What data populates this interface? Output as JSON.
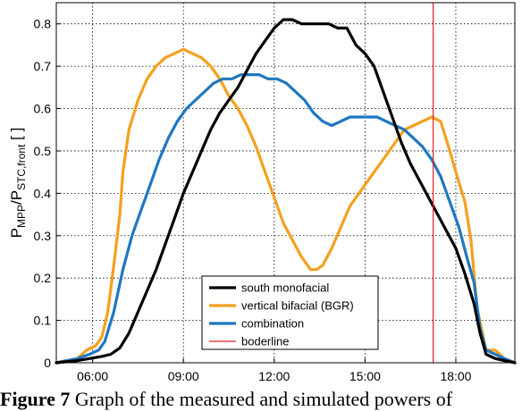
{
  "caption": {
    "label": "Figure 7",
    "text": " Graph of the measured and simulated powers of"
  },
  "chart_data": {
    "type": "line",
    "ylabel": {
      "main": "P",
      "sub1": "MPP",
      "mid": "/P",
      "sub2": "STC,front",
      "unit": " [ ]"
    },
    "x_unit": "hour of day",
    "xlim": [
      4.8,
      19.95
    ],
    "ylim": [
      0,
      0.85
    ],
    "x_ticks": [
      {
        "value": 6,
        "label": "06:00"
      },
      {
        "value": 9,
        "label": "09:00"
      },
      {
        "value": 12,
        "label": "12:00"
      },
      {
        "value": 15,
        "label": "15:00"
      },
      {
        "value": 18,
        "label": "18:00"
      }
    ],
    "y_ticks": [
      {
        "value": 0,
        "label": "0"
      },
      {
        "value": 0.1,
        "label": "0.1"
      },
      {
        "value": 0.2,
        "label": "0.2"
      },
      {
        "value": 0.3,
        "label": "0.3"
      },
      {
        "value": 0.4,
        "label": "0.4"
      },
      {
        "value": 0.5,
        "label": "0.5"
      },
      {
        "value": 0.6,
        "label": "0.6"
      },
      {
        "value": 0.7,
        "label": "0.7"
      },
      {
        "value": 0.8,
        "label": "0.8"
      }
    ],
    "grid": "dotted",
    "legend_position": "bottom-center",
    "series": [
      {
        "name": "south monofacial",
        "color": "#000000",
        "x": [
          4.8,
          5.5,
          5.9,
          6.3,
          6.6,
          6.9,
          7.2,
          7.5,
          7.8,
          8.1,
          8.4,
          8.7,
          9.0,
          9.3,
          9.6,
          9.9,
          10.2,
          10.5,
          10.8,
          11.1,
          11.4,
          11.7,
          12.0,
          12.3,
          12.6,
          12.9,
          13.2,
          13.5,
          13.8,
          14.1,
          14.4,
          14.7,
          15.0,
          15.3,
          15.6,
          15.9,
          16.2,
          16.5,
          16.8,
          17.1,
          17.4,
          17.7,
          18.0,
          18.3,
          18.6,
          18.8,
          19.0,
          19.3,
          19.6,
          19.95
        ],
        "y": [
          0.0,
          0.005,
          0.01,
          0.015,
          0.02,
          0.035,
          0.07,
          0.12,
          0.17,
          0.22,
          0.28,
          0.34,
          0.4,
          0.45,
          0.5,
          0.55,
          0.59,
          0.62,
          0.65,
          0.69,
          0.73,
          0.76,
          0.79,
          0.81,
          0.81,
          0.8,
          0.8,
          0.8,
          0.8,
          0.79,
          0.79,
          0.75,
          0.73,
          0.7,
          0.64,
          0.58,
          0.52,
          0.47,
          0.43,
          0.39,
          0.35,
          0.31,
          0.27,
          0.21,
          0.14,
          0.07,
          0.02,
          0.01,
          0.005,
          0.0
        ]
      },
      {
        "name": "vertical bifacial (BGR)",
        "color": "#f5a01e",
        "x": [
          4.8,
          5.5,
          5.8,
          6.1,
          6.3,
          6.5,
          6.7,
          6.9,
          7.0,
          7.2,
          7.5,
          7.8,
          8.1,
          8.4,
          8.7,
          9.0,
          9.3,
          9.6,
          9.9,
          10.2,
          10.5,
          10.8,
          11.1,
          11.4,
          11.7,
          12.0,
          12.3,
          12.6,
          12.9,
          13.2,
          13.4,
          13.6,
          13.9,
          14.2,
          14.5,
          14.8,
          15.1,
          15.4,
          15.7,
          16.0,
          16.3,
          16.6,
          16.9,
          17.2,
          17.5,
          17.8,
          18.0,
          18.3,
          18.5,
          18.7,
          19.0,
          19.3,
          19.6,
          19.95
        ],
        "y": [
          0.0,
          0.01,
          0.03,
          0.04,
          0.06,
          0.12,
          0.23,
          0.35,
          0.45,
          0.55,
          0.62,
          0.67,
          0.7,
          0.72,
          0.73,
          0.74,
          0.73,
          0.72,
          0.7,
          0.67,
          0.63,
          0.6,
          0.56,
          0.51,
          0.45,
          0.39,
          0.33,
          0.29,
          0.25,
          0.22,
          0.22,
          0.23,
          0.27,
          0.32,
          0.37,
          0.4,
          0.43,
          0.46,
          0.49,
          0.52,
          0.55,
          0.56,
          0.57,
          0.58,
          0.57,
          0.5,
          0.45,
          0.38,
          0.29,
          0.13,
          0.03,
          0.03,
          0.01,
          0.0
        ]
      },
      {
        "name": "combination",
        "color": "#1f77c0",
        "x": [
          4.8,
          5.5,
          5.9,
          6.2,
          6.4,
          6.7,
          7.0,
          7.3,
          7.6,
          7.9,
          8.2,
          8.5,
          8.8,
          9.1,
          9.4,
          9.7,
          10.0,
          10.3,
          10.6,
          10.9,
          11.2,
          11.5,
          11.8,
          12.1,
          12.4,
          12.7,
          13.0,
          13.3,
          13.6,
          13.9,
          14.2,
          14.5,
          14.8,
          15.1,
          15.4,
          15.7,
          16.0,
          16.3,
          16.6,
          16.9,
          17.2,
          17.5,
          17.8,
          18.1,
          18.4,
          18.6,
          18.8,
          19.0,
          19.3,
          19.6,
          19.95
        ],
        "y": [
          0.0,
          0.01,
          0.02,
          0.03,
          0.05,
          0.12,
          0.22,
          0.3,
          0.36,
          0.42,
          0.48,
          0.53,
          0.57,
          0.6,
          0.62,
          0.64,
          0.66,
          0.67,
          0.67,
          0.68,
          0.68,
          0.68,
          0.67,
          0.67,
          0.66,
          0.64,
          0.62,
          0.59,
          0.57,
          0.56,
          0.57,
          0.58,
          0.58,
          0.58,
          0.58,
          0.57,
          0.56,
          0.55,
          0.53,
          0.51,
          0.48,
          0.44,
          0.38,
          0.32,
          0.24,
          0.19,
          0.08,
          0.03,
          0.02,
          0.01,
          0.0
        ]
      },
      {
        "name": "boderline",
        "color": "#e8202a",
        "x": [
          17.25,
          17.25
        ],
        "y": [
          0,
          0.85
        ]
      }
    ]
  }
}
